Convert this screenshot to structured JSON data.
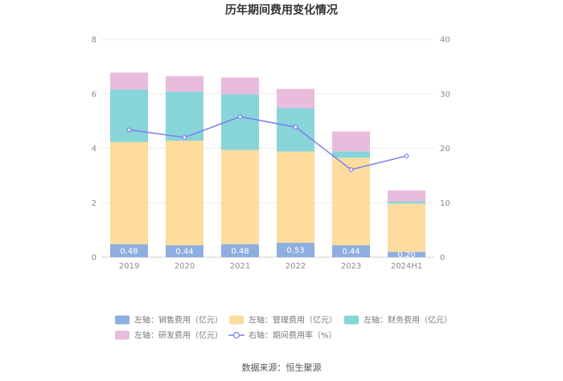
{
  "chart_data": {
    "type": "bar",
    "stacked": true,
    "title": "历年期间费用变化情况",
    "categories": [
      "2019",
      "2020",
      "2021",
      "2022",
      "2023",
      "2024H1"
    ],
    "y_left": {
      "min": 0,
      "max": 8,
      "ticks": [
        "0",
        "2",
        "4",
        "6",
        "8"
      ]
    },
    "y_right": {
      "min": 0,
      "max": 40,
      "ticks": [
        "0",
        "10",
        "20",
        "30",
        "40"
      ]
    },
    "series": [
      {
        "name": "左轴：销售费用（亿元）",
        "axis": "left",
        "color": "#8eaee0",
        "values": [
          0.48,
          0.44,
          0.48,
          0.53,
          0.44,
          0.2
        ],
        "labels": [
          "0.48",
          "0.44",
          "0.48",
          "0.53",
          "0.44",
          "0.20"
        ]
      },
      {
        "name": "左轴：管理费用（亿元）",
        "axis": "left",
        "color": "#fddc9d",
        "values": [
          3.75,
          3.84,
          3.46,
          3.35,
          3.21,
          1.77
        ]
      },
      {
        "name": "左轴：财务费用（亿元）",
        "axis": "left",
        "color": "#87d5d9",
        "values": [
          1.93,
          1.8,
          2.04,
          1.6,
          0.24,
          0.08
        ]
      },
      {
        "name": "左轴：研发费用（亿元）",
        "axis": "left",
        "color": "#e9bbdc",
        "values": [
          0.62,
          0.57,
          0.62,
          0.7,
          0.73,
          0.4
        ]
      },
      {
        "name": "右轴：期间费用率（%）",
        "axis": "right",
        "type": "line",
        "color": "#7b7ff0",
        "values": [
          23.4,
          22.0,
          25.8,
          23.9,
          16.1,
          18.6
        ]
      }
    ],
    "legend_position": "bottom",
    "source": "数据来源：恒生聚源"
  }
}
